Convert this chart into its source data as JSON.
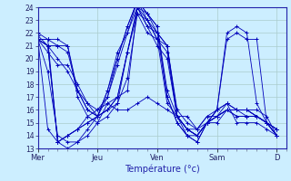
{
  "title": "",
  "xlabel": "Température (°c)",
  "background_color": "#cceeff",
  "grid_color": "#aacccc",
  "line_color": "#0000bb",
  "marker": "+",
  "ylim": [
    13,
    24
  ],
  "yticks": [
    13,
    14,
    15,
    16,
    17,
    18,
    19,
    20,
    21,
    22,
    23,
    24
  ],
  "xtick_labels": [
    "Mer",
    "Jeu",
    "Ven",
    "Sam",
    "D"
  ],
  "xtick_positions": [
    0,
    24,
    48,
    72,
    96
  ],
  "series": [
    [
      21.8,
      21.0,
      20.0,
      19.0,
      17.5,
      16.5,
      16.0,
      16.5,
      17.0,
      17.5,
      24.0,
      22.5,
      22.0,
      21.0,
      16.0,
      15.0,
      14.5,
      15.5,
      15.5,
      16.5,
      15.0,
      15.0,
      15.0,
      14.5,
      14.0
    ],
    [
      21.5,
      20.5,
      19.5,
      19.5,
      18.0,
      16.5,
      15.5,
      16.0,
      16.5,
      18.5,
      23.5,
      22.0,
      21.5,
      21.0,
      15.5,
      14.5,
      14.0,
      15.0,
      15.0,
      16.0,
      15.5,
      15.5,
      15.5,
      15.0,
      14.5
    ],
    [
      21.5,
      21.0,
      13.5,
      14.0,
      14.5,
      15.5,
      16.0,
      17.0,
      20.0,
      22.5,
      24.5,
      23.0,
      21.5,
      16.5,
      15.5,
      14.0,
      14.0,
      15.0,
      15.5,
      16.0,
      16.0,
      16.0,
      16.0,
      15.5,
      14.0
    ],
    [
      21.5,
      21.0,
      13.5,
      14.0,
      14.5,
      15.0,
      15.5,
      17.5,
      20.5,
      22.0,
      24.5,
      23.5,
      22.0,
      17.0,
      15.0,
      14.0,
      13.5,
      15.0,
      15.5,
      16.0,
      15.5,
      15.5,
      15.5,
      15.0,
      14.0
    ],
    [
      21.5,
      21.5,
      21.0,
      20.5,
      17.5,
      16.0,
      15.5,
      16.0,
      17.0,
      20.5,
      24.0,
      22.5,
      21.0,
      20.0,
      15.5,
      14.5,
      14.5,
      15.0,
      16.0,
      16.5,
      16.0,
      16.0,
      15.5,
      15.0,
      14.5
    ],
    [
      21.5,
      21.5,
      21.5,
      21.0,
      17.0,
      15.5,
      15.0,
      15.5,
      16.5,
      20.5,
      24.0,
      23.0,
      21.5,
      20.5,
      15.5,
      14.5,
      14.0,
      15.0,
      16.0,
      16.5,
      16.0,
      16.0,
      15.5,
      15.0,
      14.5
    ],
    [
      21.5,
      19.0,
      14.0,
      13.5,
      13.5,
      14.0,
      15.0,
      16.5,
      16.0,
      16.0,
      16.5,
      17.0,
      16.5,
      16.0,
      15.5,
      15.5,
      14.5,
      15.5,
      16.0,
      21.5,
      22.0,
      21.5,
      21.5,
      15.0,
      14.0
    ],
    [
      22.0,
      21.5,
      13.5,
      13.0,
      13.5,
      14.5,
      15.5,
      17.5,
      20.0,
      22.5,
      24.5,
      23.5,
      22.5,
      17.5,
      15.5,
      14.5,
      14.0,
      15.0,
      16.0,
      22.0,
      22.5,
      22.0,
      16.5,
      15.0,
      14.0
    ],
    [
      21.5,
      21.0,
      21.0,
      21.0,
      17.5,
      16.0,
      15.5,
      16.0,
      17.0,
      20.5,
      23.5,
      23.0,
      22.0,
      21.0,
      15.5,
      14.5,
      14.0,
      15.0,
      15.5,
      16.0,
      16.0,
      16.0,
      15.5,
      15.0,
      14.5
    ],
    [
      21.5,
      14.5,
      13.5,
      14.0,
      14.5,
      15.0,
      15.5,
      17.0,
      19.5,
      22.0,
      24.0,
      23.5,
      22.5,
      17.0,
      15.0,
      14.0,
      13.5,
      15.0,
      15.5,
      16.0,
      16.0,
      15.5,
      15.5,
      15.0,
      14.0
    ]
  ]
}
